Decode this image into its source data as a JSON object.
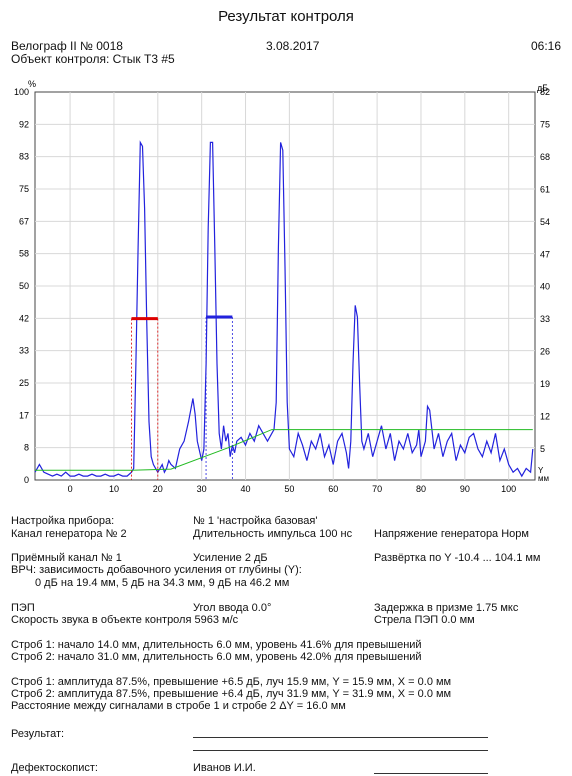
{
  "report_title": "Результат контроля",
  "device": "Велограф II № 0018",
  "date": "3.08.2017",
  "time": "06:16",
  "object": "Объект контроля: Стык Т3 #5",
  "colors": {
    "signal": "#2222dd",
    "tvg": "#22bb22",
    "gate1": "#dd0000",
    "gate2": "#2222dd",
    "grid": "#d8d8d8"
  },
  "chart_data": {
    "type": "line",
    "xlabel": "Y\nмм",
    "ylabel_left": "%",
    "ylabel_right": "дБ",
    "xlim": [
      -8,
      106
    ],
    "ylim": [
      0,
      100
    ],
    "x_ticks": [
      "0",
      "10",
      "20",
      "30",
      "40",
      "50",
      "60",
      "70",
      "80",
      "90",
      "100"
    ],
    "y_ticks_left": [
      "0",
      "8",
      "17",
      "25",
      "33",
      "42",
      "50",
      "58",
      "67",
      "75",
      "83",
      "92",
      "100"
    ],
    "y_ticks_right": [
      "5",
      "12",
      "19",
      "26",
      "33",
      "40",
      "47",
      "54",
      "61",
      "68",
      "75",
      "82"
    ],
    "series": [
      {
        "role": "a-scan",
        "color": "#2222dd",
        "x": [
          -8,
          -7.5,
          -7,
          -6,
          -5,
          -4,
          -3,
          -2,
          -1,
          0,
          1,
          2,
          3,
          4,
          5,
          6,
          7,
          8,
          9,
          10,
          11,
          12,
          13,
          14,
          14.5,
          15,
          15.5,
          16,
          16.5,
          17,
          17.5,
          18,
          18.5,
          19,
          19.5,
          20,
          20.5,
          21,
          21.5,
          22,
          22.5,
          23,
          24,
          25,
          26,
          27,
          27.5,
          28,
          28.5,
          29,
          30,
          30.5,
          31,
          31.5,
          32,
          32.5,
          33,
          33.5,
          34,
          34.5,
          35,
          35.5,
          36,
          36.5,
          37,
          37.5,
          38,
          39,
          40,
          41,
          42,
          43,
          44,
          45,
          46,
          46.5,
          47,
          47.5,
          48,
          48.5,
          49,
          49.5,
          50,
          51,
          52,
          53,
          54,
          55,
          56,
          57,
          58,
          59,
          60,
          61,
          62,
          63,
          63.5,
          64,
          64.5,
          65,
          65.5,
          66,
          66.5,
          67,
          68,
          69,
          70,
          71,
          72,
          73,
          74,
          75,
          76,
          77,
          78,
          79,
          79.5,
          80,
          81,
          81.5,
          82,
          83,
          84,
          85,
          86,
          87,
          88,
          89,
          90,
          91,
          92,
          93,
          94,
          95,
          96,
          97,
          98,
          99,
          100,
          101,
          102,
          103,
          104,
          105,
          105.5
        ],
        "y": [
          2,
          3,
          4,
          2,
          1.5,
          1,
          1.5,
          1,
          2,
          1,
          1,
          1.5,
          1,
          1,
          1.5,
          1,
          1,
          1.5,
          1,
          1,
          1.5,
          1,
          1,
          2,
          3,
          30,
          60,
          87,
          86,
          70,
          40,
          15,
          6,
          4,
          3,
          2,
          3,
          4,
          2,
          3,
          5,
          4,
          3,
          8,
          10,
          15,
          18,
          21,
          17,
          10,
          5,
          8,
          30,
          65,
          87,
          87,
          60,
          30,
          12,
          8,
          14,
          10,
          12,
          6,
          9,
          7,
          10,
          11,
          9,
          12,
          10,
          14,
          12,
          10,
          12,
          13,
          20,
          60,
          87,
          85,
          55,
          20,
          8,
          6,
          12,
          9,
          5,
          10,
          8,
          12,
          6,
          9,
          4,
          10,
          12,
          7,
          3,
          10,
          30,
          45,
          42,
          25,
          10,
          8,
          12,
          6,
          10,
          14,
          8,
          12,
          5,
          10,
          8,
          12,
          7,
          9,
          13,
          6,
          10,
          19,
          18,
          8,
          12,
          6,
          10,
          12,
          5,
          9,
          7,
          11,
          12,
          8,
          6,
          10,
          7,
          12,
          5,
          8,
          4,
          2,
          3,
          1,
          3,
          2,
          8
        ]
      },
      {
        "role": "tvg",
        "color": "#22bb22",
        "x": [
          -8,
          14,
          23,
          36,
          46,
          105.5
        ],
        "y": [
          2.5,
          2.5,
          2.8,
          8.3,
          13,
          13
        ]
      }
    ],
    "gates": [
      {
        "name": "Строб 1",
        "x_start": 14,
        "x_end": 20,
        "level": 41.6,
        "color": "#dd0000"
      },
      {
        "name": "Строб 2",
        "x_start": 31,
        "x_end": 37,
        "level": 42.0,
        "color": "#2222dd"
      }
    ]
  },
  "settings": {
    "setup_label": "Настройка прибора:",
    "setup_value": "№ 1 'настройка базовая'",
    "gen_channel": "Канал генератора №  2",
    "pulse_len": "Длительность импульса  100 нс",
    "gen_voltage": "Напряжение генератора  Норм",
    "rx_channel": "Приёмный канал №  1",
    "gain": "Усиление  2 дБ",
    "sweep": "Развёртка по Y  -10.4 ... 104.1 мм",
    "tvg_title": "ВРЧ: зависимость добавочного усиления от глубины (Y):",
    "tvg_points": "0 дБ на 19.4 мм, 5 дБ на 34.3 мм, 9 дБ на 46.2 мм",
    "pep": "ПЭП",
    "angle": "Угол ввода  0.0°",
    "prism_delay": "Задержка в призме  1.75 мкс",
    "sound_speed": "Скорость звука в объекте контроля  5963 м/с",
    "pep_arrow": "Стрела ПЭП  0.0 мм"
  },
  "gates_text": {
    "g1": "Строб 1: начало 14.0 мм, длительность 6.0 мм, уровень 41.6% для превышений",
    "g2": "Строб 2: начало 31.0 мм, длительность 6.0 мм, уровень 42.0% для превышений"
  },
  "results_text": {
    "r1": "Строб 1: амплитуда 87.5%, превышение +6.5  дБ, луч 15.9 мм, Y = 15.9 мм, X = 0.0 мм",
    "r2": "Строб 2: амплитуда 87.5%, превышение +6.4  дБ, луч 31.9 мм, Y = 31.9 мм, X = 0.0 мм",
    "r3": "Расстояние между сигналами в стробе 1 и стробе 2 ΔY = 16.0 мм"
  },
  "footer": {
    "result_label": "Результат:",
    "operator_label": "Дефектоскопист:",
    "operator_name": "Иванов И.И."
  }
}
